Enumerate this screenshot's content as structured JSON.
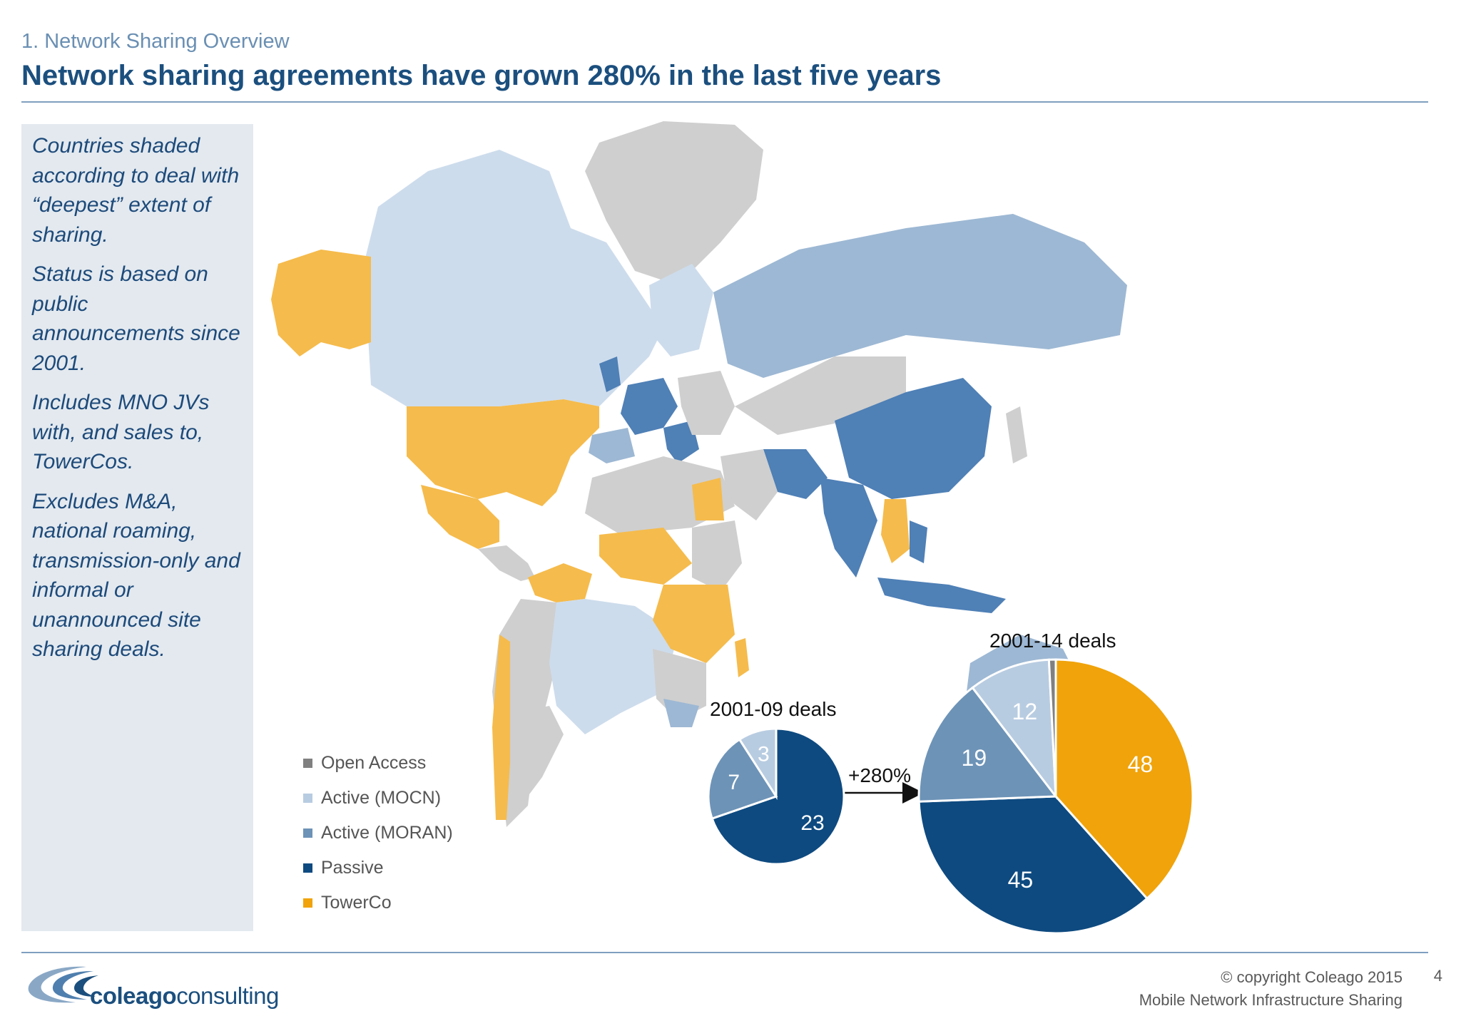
{
  "header": {
    "section": "1. Network Sharing Overview",
    "title": "Network sharing agreements have grown 280% in the last five years"
  },
  "sidebar": {
    "paragraphs": [
      "Countries shaded according to deal with “deepest” extent of sharing.",
      "Status is based on public announcements since 2001.",
      "Includes MNO JVs with, and sales to, TowerCos.",
      "Excludes M&A, national roaming, transmission-only and informal or unannounced site sharing deals."
    ]
  },
  "legend": {
    "items": [
      {
        "label": "Open Access",
        "color": "#808080"
      },
      {
        "label": "Active (MOCN)",
        "color": "#b8cce1"
      },
      {
        "label": "Active (MORAN)",
        "color": "#6d93b7"
      },
      {
        "label": "Passive",
        "color": "#0e4a80"
      },
      {
        "label": "TowerCo",
        "color": "#f0a30a"
      }
    ]
  },
  "chart_data": [
    {
      "type": "pie",
      "title": "2001-09 deals",
      "categories": [
        "Open Access",
        "Active (MOCN)",
        "Active (MORAN)",
        "Passive",
        "TowerCo"
      ],
      "values": [
        0,
        3,
        7,
        23,
        0
      ]
    },
    {
      "type": "pie",
      "title": "2001-14 deals",
      "categories": [
        "Open Access",
        "Active (MOCN)",
        "Active (MORAN)",
        "Passive",
        "TowerCo"
      ],
      "values": [
        1,
        12,
        19,
        45,
        48
      ]
    }
  ],
  "growth_label": "+280%",
  "colors": {
    "map_grey": "#cfcfcf",
    "map_light": "#cddcec",
    "map_mid": "#9db8d4",
    "map_dark": "#4f80b6",
    "map_towerco": "#f5bb4c"
  },
  "footer": {
    "logo_bold": "coleago",
    "logo_light": "consulting",
    "copyright": "© copyright Coleago 2015",
    "deck_title": "Mobile Network Infrastructure Sharing",
    "page_number": "4"
  }
}
